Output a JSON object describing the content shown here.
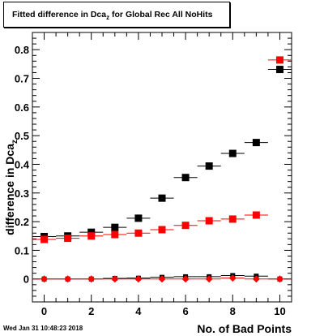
{
  "title": {
    "main": "Fitted difference in Dca",
    "sub": "z",
    "suffix": " for Global Rec All NoHits"
  },
  "footer": "Wed Jan 31 10:48:23 2018",
  "colors": {
    "black_series": "#000000",
    "red_series": "#ff0000",
    "frame": "#000000"
  },
  "chart_data": {
    "type": "scatter",
    "title": "Fitted difference in Dca_z for Global Rec All NoHits",
    "xlabel": "No. of Bad Points",
    "ylabel": {
      "main": "difference in Dca",
      "sub": "z"
    },
    "xlim": [
      -0.5,
      10.5
    ],
    "ylim": [
      -0.08,
      0.86
    ],
    "x_ticks": [
      "0",
      "2",
      "4",
      "6",
      "8",
      "10"
    ],
    "y_ticks": [
      "0",
      "0.1",
      "0.2",
      "0.3",
      "0.4",
      "0.5",
      "0.6",
      "0.7",
      "0.8"
    ],
    "grid": false,
    "series": [
      {
        "color": "#000000",
        "marker": "square",
        "x": [
          0,
          1,
          2,
          3,
          4,
          5,
          6,
          7,
          8,
          9,
          10
        ],
        "y": [
          0.148,
          0.15,
          0.163,
          0.18,
          0.212,
          0.282,
          0.354,
          0.394,
          0.438,
          0.476,
          0.731
        ]
      },
      {
        "color": "#ff0000",
        "marker": "square",
        "x": [
          0,
          1,
          2,
          3,
          4,
          5,
          6,
          7,
          8,
          9,
          10
        ],
        "y": [
          0.138,
          0.142,
          0.15,
          0.155,
          0.16,
          0.172,
          0.187,
          0.203,
          0.209,
          0.223,
          0.764
        ]
      },
      {
        "color": "#000000",
        "marker": "square-small",
        "x": [
          0,
          1,
          2,
          3,
          4,
          5,
          6,
          7,
          8,
          9,
          10
        ],
        "y": [
          0.0,
          0.0,
          0.0,
          0.002,
          0.003,
          0.006,
          0.008,
          0.008,
          0.012,
          0.01,
          0.0
        ]
      },
      {
        "color": "#ff0000",
        "marker": "diamond",
        "x": [
          0,
          1,
          2,
          3,
          4,
          5,
          6,
          7,
          8,
          9,
          10
        ],
        "y": [
          0.0,
          0.0,
          0.0,
          0.0,
          0.0,
          0.0,
          0.0,
          0.0,
          0.003,
          0.0,
          0.0
        ]
      }
    ]
  }
}
